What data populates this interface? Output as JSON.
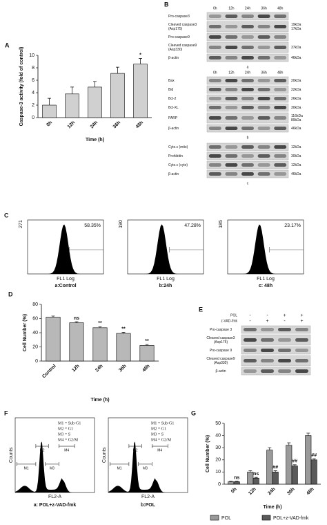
{
  "chart_data": [
    {
      "type": "bar",
      "panel": "A",
      "categories": [
        "0h",
        "12h",
        "24h",
        "36h",
        "48h"
      ],
      "values": [
        2,
        3.8,
        4.9,
        7.1,
        8.6
      ],
      "errors": [
        1.1,
        1.1,
        0.9,
        1,
        0.9
      ],
      "color": "#d0d0d0",
      "ylim": [
        0,
        10
      ],
      "yticks": [
        0,
        2,
        4,
        6,
        8,
        10
      ],
      "y_label": "Caspase-3 activity (fold of control)",
      "x_label": "Time (h)",
      "annotations": [
        {
          "category": "48h",
          "text": "*"
        }
      ]
    },
    {
      "type": "bar",
      "panel": "D",
      "categories": [
        "Control",
        "12h",
        "24h",
        "36h",
        "48h"
      ],
      "values": [
        62,
        54,
        47,
        39,
        22
      ],
      "errors": [
        1.5,
        1.5,
        1.5,
        1.5,
        1.5
      ],
      "color": "#b8b8b8",
      "ylim": [
        0,
        80
      ],
      "yticks": [
        0,
        20,
        40,
        60,
        80
      ],
      "y_label": "Cell Number (%)",
      "x_label": "Time (h)",
      "annotations": [
        {
          "category": "12h",
          "text": "ns"
        },
        {
          "category": "24h",
          "text": "**"
        },
        {
          "category": "36h",
          "text": "**"
        },
        {
          "category": "48h",
          "text": "**"
        }
      ]
    },
    {
      "type": "bar",
      "panel": "G",
      "categories": [
        "0h",
        "12h",
        "24h",
        "36h",
        "48h"
      ],
      "series": [
        {
          "name": "POL",
          "color": "#9a9a9a",
          "values": [
            2,
            10,
            28,
            32,
            40
          ],
          "errors": [
            0.4,
            1.2,
            2,
            2,
            2
          ]
        },
        {
          "name": "POL+z-VAD-fmk",
          "color": "#5a5a5a",
          "values": [
            2,
            5,
            10,
            15,
            20
          ],
          "errors": [
            0.4,
            0.6,
            1,
            1,
            1
          ]
        }
      ],
      "ylim": [
        0,
        50
      ],
      "yticks": [
        0,
        10,
        20,
        30,
        40,
        50
      ],
      "y_label": "Cell Number (%)",
      "x_label": "Time (h)",
      "annotations": [
        {
          "category": "0h",
          "series": "POL+z-VAD-fmk",
          "text": "ns"
        },
        {
          "category": "12h",
          "series": "POL+z-VAD-fmk",
          "text": "ns"
        },
        {
          "category": "24h",
          "series": "POL+z-VAD-fmk",
          "text": "##"
        },
        {
          "category": "36h",
          "series": "POL+z-VAD-fmk",
          "text": "##"
        },
        {
          "category": "48h",
          "series": "POL+z-VAD-fmk",
          "text": "##"
        }
      ]
    }
  ],
  "blot_B": {
    "panel": "B",
    "groups": [
      {
        "lanes": [
          "0h",
          "12h",
          "24h",
          "36h",
          "48h"
        ],
        "caption": "a",
        "rows": [
          {
            "label": "Pro-caspase3"
          },
          {
            "label": "Cleaved caspase3",
            "sublabel": "(Asp175)",
            "kda": [
              "19kDa",
              "17kDa"
            ]
          },
          {
            "label": "Pro-caspase9"
          },
          {
            "label": "Cleaved caspase9",
            "sublabel": "(Asp330)",
            "kda": [
              "37kDa"
            ]
          },
          {
            "label": "β-actin",
            "kda": [
              "46kDa"
            ]
          }
        ]
      },
      {
        "lanes": [
          "0h",
          "12h",
          "24h",
          "36h",
          "48h"
        ],
        "caption": "b",
        "rows": [
          {
            "label": "Bax",
            "kda": [
              "20kDa"
            ]
          },
          {
            "label": "Bid",
            "kda": [
              "22kDa"
            ]
          },
          {
            "label": "Bcl-2",
            "kda": [
              "26kDa"
            ]
          },
          {
            "label": "Bcl-XL",
            "kda": [
              "30kDa"
            ]
          },
          {
            "label": "PARP",
            "kda": [
              "116kDa",
              "89kDa"
            ]
          },
          {
            "label": "β-actin",
            "kda": [
              "46kDa"
            ]
          }
        ]
      },
      {
        "caption": "c",
        "rows": [
          {
            "label": "Cyto.c (mito)",
            "kda": [
              "12kDa"
            ]
          },
          {
            "label": "Prohibitin",
            "kda": [
              "30kDa"
            ]
          },
          {
            "label": "Cyto.c (cyto)",
            "kda": [
              "12kDa"
            ]
          },
          {
            "label": "β-actin",
            "kda": [
              "46kDa"
            ]
          }
        ]
      }
    ]
  },
  "flow_C": {
    "panel": "C",
    "x_label": "FL1 Log",
    "plots": [
      {
        "ymax": "271",
        "percent": "58.35%",
        "label": "a:Control"
      },
      {
        "ymax": "190",
        "percent": "47.28%",
        "label": "b:24h"
      },
      {
        "ymax": "185",
        "percent": "23.17%",
        "label": "c: 48h"
      }
    ]
  },
  "blot_E": {
    "panel": "E",
    "treatments": [
      {
        "name": "POL",
        "signs": [
          "-",
          "-",
          "+",
          "+"
        ]
      },
      {
        "name": "z-VAD-fmk",
        "signs": [
          "-",
          "+",
          "-",
          "+"
        ]
      }
    ],
    "rows": [
      {
        "label": "Pro-caspase 3"
      },
      {
        "label": "Cleaved caspase3",
        "sublabel": "(Asp175)"
      },
      {
        "label": "Pro-caspase 9"
      },
      {
        "label": "Cleaved caspase9",
        "sublabel": "(Asp330)"
      },
      {
        "label": "β-actin"
      }
    ]
  },
  "cycle_F": {
    "panel": "F",
    "x_label": "FL2-A",
    "y_label": "Counts",
    "markers": [
      "M1",
      "M2",
      "M3",
      "M4"
    ],
    "legend": [
      "M1 = Sub-G1",
      "M2 = G1",
      "M3 = S",
      "M4 = G2/M"
    ],
    "plots": [
      {
        "label": "a: POL+z-VAD-fmk"
      },
      {
        "label": "b:POL"
      }
    ]
  }
}
